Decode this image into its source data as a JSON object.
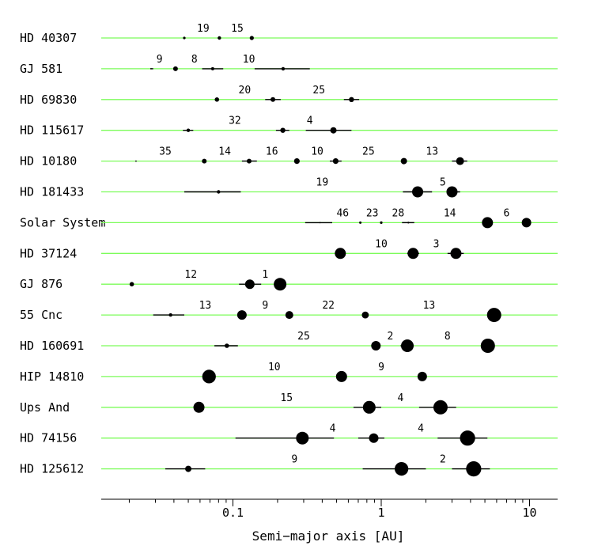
{
  "chart_data": {
    "type": "scatter",
    "xlabel": "Semi−major axis [AU]",
    "xscale": "log",
    "xlim": [
      0.012,
      16
    ],
    "xticks": [
      {
        "value": 0.1,
        "label": "0.1"
      },
      {
        "value": 1,
        "label": "1"
      },
      {
        "value": 10,
        "label": "10"
      }
    ],
    "minor_ticks": [
      0.02,
      0.03,
      0.04,
      0.05,
      0.06,
      0.07,
      0.08,
      0.09,
      0.2,
      0.3,
      0.4,
      0.5,
      0.6,
      0.7,
      0.8,
      0.9,
      2,
      3,
      4,
      5,
      6,
      7,
      8,
      9
    ],
    "colors": {
      "system_line": "#7CFC5A",
      "planet": "#000000",
      "range_bar": "#000000"
    },
    "legend": "none",
    "grid": false,
    "systems": [
      {
        "name": "HD 40307",
        "planets": [
          {
            "a": 0.047,
            "size": 1.6
          },
          {
            "a": 0.081,
            "size": 2.2
          },
          {
            "a": 0.134,
            "size": 2.6
          }
        ],
        "ratios": [
          {
            "text": "19",
            "a": 0.063
          },
          {
            "text": "15",
            "a": 0.107
          }
        ]
      },
      {
        "name": "GJ 581",
        "planets": [
          {
            "a": 0.028,
            "size": 0.9,
            "range": [
              0.028,
              0.029
            ]
          },
          {
            "a": 0.041,
            "size": 3.0
          },
          {
            "a": 0.073,
            "size": 2.0,
            "range": [
              0.062,
              0.086
            ]
          },
          {
            "a": 0.218,
            "size": 2.2,
            "range": [
              0.14,
              0.33
            ]
          }
        ],
        "ratios": [
          {
            "text": "9",
            "a": 0.032
          },
          {
            "text": "8",
            "a": 0.055
          },
          {
            "text": "10",
            "a": 0.128
          }
        ]
      },
      {
        "name": "HD 69830",
        "planets": [
          {
            "a": 0.078,
            "size": 2.8
          },
          {
            "a": 0.186,
            "size": 3.0,
            "range": [
              0.165,
              0.21
            ]
          },
          {
            "a": 0.63,
            "size": 3.2,
            "range": [
              0.56,
              0.71
            ]
          }
        ],
        "ratios": [
          {
            "text": "20",
            "a": 0.12
          },
          {
            "text": "25",
            "a": 0.38
          }
        ]
      },
      {
        "name": "HD 115617",
        "planets": [
          {
            "a": 0.05,
            "size": 2.2,
            "range": [
              0.046,
              0.054
            ]
          },
          {
            "a": 0.217,
            "size": 3.2,
            "range": [
              0.195,
              0.24
            ]
          },
          {
            "a": 0.476,
            "size": 4.0,
            "range": [
              0.31,
              0.63
            ]
          }
        ],
        "ratios": [
          {
            "text": "32",
            "a": 0.103
          },
          {
            "text": "4",
            "a": 0.33
          }
        ]
      },
      {
        "name": "HD 10180",
        "planets": [
          {
            "a": 0.0222,
            "size": 0.9
          },
          {
            "a": 0.0641,
            "size": 3.0
          },
          {
            "a": 0.1286,
            "size": 3.0,
            "range": [
              0.115,
              0.145
            ]
          },
          {
            "a": 0.2699,
            "size": 3.6
          },
          {
            "a": 0.4929,
            "size": 3.6,
            "range": [
              0.45,
              0.54
            ]
          },
          {
            "a": 1.422,
            "size": 4.0
          },
          {
            "a": 3.4,
            "size": 5.0,
            "range": [
              3.0,
              3.8
            ]
          }
        ],
        "ratios": [
          {
            "text": "35",
            "a": 0.035
          },
          {
            "text": "14",
            "a": 0.088
          },
          {
            "text": "16",
            "a": 0.183
          },
          {
            "text": "10",
            "a": 0.37
          },
          {
            "text": "25",
            "a": 0.82
          },
          {
            "text": "13",
            "a": 2.2
          }
        ]
      },
      {
        "name": "HD 181433",
        "planets": [
          {
            "a": 0.08,
            "size": 2.2,
            "range": [
              0.047,
              0.113
            ]
          },
          {
            "a": 1.76,
            "size": 7.0,
            "range": [
              1.4,
              2.2
            ]
          },
          {
            "a": 3.0,
            "size": 7.0,
            "range": [
              2.8,
              3.4
            ]
          }
        ],
        "ratios": [
          {
            "text": "19",
            "a": 0.4
          },
          {
            "text": "5",
            "a": 2.6
          }
        ]
      },
      {
        "name": "Solar System",
        "planets": [
          {
            "a": 0.387,
            "size": 0.9,
            "range": [
              0.307,
              0.467
            ]
          },
          {
            "a": 0.723,
            "size": 1.5
          },
          {
            "a": 1.0,
            "size": 1.6
          },
          {
            "a": 1.524,
            "size": 1.1,
            "range": [
              1.38,
              1.67
            ]
          },
          {
            "a": 5.203,
            "size": 7.0
          },
          {
            "a": 9.537,
            "size": 6.0
          }
        ],
        "ratios": [
          {
            "text": "46",
            "a": 0.55
          },
          {
            "text": "23",
            "a": 0.87
          },
          {
            "text": "28",
            "a": 1.3
          },
          {
            "text": "14",
            "a": 2.9
          },
          {
            "text": "6",
            "a": 7.0
          }
        ]
      },
      {
        "name": "HD 37124",
        "planets": [
          {
            "a": 0.53,
            "size": 7.0
          },
          {
            "a": 1.64,
            "size": 7.0,
            "range": [
              1.5,
              1.8
            ]
          },
          {
            "a": 3.19,
            "size": 7.0,
            "range": [
              2.8,
              3.6
            ]
          }
        ],
        "ratios": [
          {
            "text": "10",
            "a": 1.0
          },
          {
            "text": "3",
            "a": 2.35
          }
        ]
      },
      {
        "name": "GJ 876",
        "planets": [
          {
            "a": 0.0208,
            "size": 2.8
          },
          {
            "a": 0.13,
            "size": 6.0,
            "range": [
              0.11,
              0.155
            ]
          },
          {
            "a": 0.208,
            "size": 8.0
          }
        ],
        "ratios": [
          {
            "text": "12",
            "a": 0.052
          },
          {
            "text": "1",
            "a": 0.165
          }
        ]
      },
      {
        "name": "55 Cnc",
        "planets": [
          {
            "a": 0.038,
            "size": 2.2,
            "range": [
              0.029,
              0.047
            ]
          },
          {
            "a": 0.115,
            "size": 6.0
          },
          {
            "a": 0.24,
            "size": 5.0
          },
          {
            "a": 0.781,
            "size": 4.4
          },
          {
            "a": 5.77,
            "size": 9.0,
            "range": [
              5.2,
              6.4
            ]
          }
        ],
        "ratios": [
          {
            "text": "13",
            "a": 0.065
          },
          {
            "text": "9",
            "a": 0.165
          },
          {
            "text": "22",
            "a": 0.44
          },
          {
            "text": "13",
            "a": 2.1
          }
        ]
      },
      {
        "name": "HD 160691",
        "planets": [
          {
            "a": 0.091,
            "size": 2.8,
            "range": [
              0.075,
              0.108
            ]
          },
          {
            "a": 0.921,
            "size": 6.0
          },
          {
            "a": 1.5,
            "size": 8.0,
            "range": [
              1.35,
              1.65
            ]
          },
          {
            "a": 5.235,
            "size": 9.0,
            "range": [
              4.7,
              5.8
            ]
          }
        ],
        "ratios": [
          {
            "text": "25",
            "a": 0.3
          },
          {
            "text": "2",
            "a": 1.15
          },
          {
            "text": "8",
            "a": 2.8
          }
        ]
      },
      {
        "name": "HIP 14810",
        "planets": [
          {
            "a": 0.069,
            "size": 8.6
          },
          {
            "a": 0.54,
            "size": 7.0
          },
          {
            "a": 1.89,
            "size": 6.0
          }
        ],
        "ratios": [
          {
            "text": "10",
            "a": 0.19
          },
          {
            "text": "9",
            "a": 1.0
          }
        ]
      },
      {
        "name": "Ups And",
        "planets": [
          {
            "a": 0.059,
            "size": 7.0
          },
          {
            "a": 0.83,
            "size": 8.0,
            "range": [
              0.65,
              1.0
            ]
          },
          {
            "a": 2.51,
            "size": 9.0,
            "range": [
              1.8,
              3.2
            ]
          }
        ],
        "ratios": [
          {
            "text": "15",
            "a": 0.23
          },
          {
            "text": "4",
            "a": 1.35
          }
        ]
      },
      {
        "name": "HD 74156",
        "planets": [
          {
            "a": 0.294,
            "size": 8.0,
            "range": [
              0.104,
              0.48
            ]
          },
          {
            "a": 0.89,
            "size": 6.0,
            "range": [
              0.7,
              1.05
            ]
          },
          {
            "a": 3.82,
            "size": 9.6,
            "range": [
              2.4,
              5.2
            ]
          }
        ],
        "ratios": [
          {
            "text": "4",
            "a": 0.47
          },
          {
            "text": "4",
            "a": 1.85
          }
        ]
      },
      {
        "name": "HD 125612",
        "planets": [
          {
            "a": 0.05,
            "size": 4.0,
            "range": [
              0.035,
              0.065
            ]
          },
          {
            "a": 1.37,
            "size": 8.6,
            "range": [
              0.75,
              2.0
            ]
          },
          {
            "a": 4.2,
            "size": 9.6,
            "range": [
              3.0,
              5.4
            ]
          }
        ],
        "ratios": [
          {
            "text": "9",
            "a": 0.26
          },
          {
            "text": "2",
            "a": 2.6
          }
        ]
      }
    ]
  }
}
